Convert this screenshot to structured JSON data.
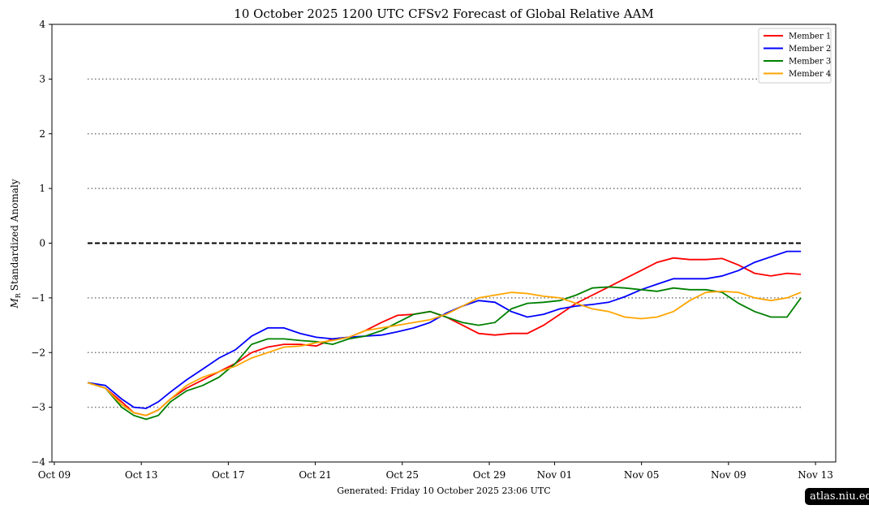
{
  "chart_data": {
    "type": "line",
    "title": "10  October  2025 1200 UTC   CFSv2 Forecast of Global Relative AAM",
    "xlabel": "",
    "ylabel_symbol": "M",
    "ylabel_subscript": "R",
    "ylabel": "Standardized Anomaly",
    "x_units": "days since Oct 09 2025 00 UTC",
    "xlim": [
      -0.11,
      35.93
    ],
    "ylim": [
      -4,
      4
    ],
    "yticks": [
      4,
      3,
      2,
      1,
      0,
      -1,
      -2,
      -3,
      -4
    ],
    "ytick_labels": [
      "4",
      "3",
      "2",
      "1",
      "0",
      "−1",
      "−2",
      "−3",
      "−4"
    ],
    "xticks": [
      0,
      4,
      8,
      12,
      16,
      20,
      23,
      27,
      31,
      35
    ],
    "xtick_labels": [
      "Oct 09",
      "Oct 13",
      "Oct 17",
      "Oct 21",
      "Oct 25",
      "Oct 29",
      "Nov 01",
      "Nov 05",
      "Nov 09",
      "Nov 13"
    ],
    "reference_lines": {
      "dotted": [
        3,
        2,
        1,
        -1,
        -2,
        -3
      ],
      "dashed": [
        0
      ]
    },
    "legend_position": "top-right",
    "x": [
      1.53,
      2.35,
      3.1,
      3.66,
      4.22,
      4.78,
      5.34,
      6.08,
      6.83,
      7.57,
      8.32,
      9.07,
      9.81,
      10.56,
      11.31,
      12.05,
      12.8,
      13.54,
      14.29,
      15.04,
      15.78,
      16.53,
      17.28,
      18.02,
      18.77,
      19.51,
      20.26,
      21.01,
      21.75,
      22.5,
      23.25,
      23.99,
      24.74,
      25.49,
      26.23,
      26.98,
      27.72,
      28.47,
      29.22,
      29.96,
      30.71,
      31.46,
      32.2,
      32.95,
      33.69,
      34.33
    ],
    "series": [
      {
        "name": "Member 1",
        "color": "#ff0000",
        "values": [
          -2.55,
          -2.65,
          -2.9,
          -3.1,
          -3.15,
          -3.05,
          -2.85,
          -2.65,
          -2.5,
          -2.35,
          -2.2,
          -2.0,
          -1.9,
          -1.85,
          -1.85,
          -1.88,
          -1.75,
          -1.72,
          -1.6,
          -1.45,
          -1.32,
          -1.3,
          -1.25,
          -1.35,
          -1.5,
          -1.65,
          -1.68,
          -1.65,
          -1.65,
          -1.5,
          -1.3,
          -1.1,
          -0.95,
          -0.8,
          -0.65,
          -0.5,
          -0.35,
          -0.27,
          -0.3,
          -0.3,
          -0.28,
          -0.4,
          -0.55,
          -0.6,
          -0.55,
          -0.57
        ]
      },
      {
        "name": "Member 2",
        "color": "#0000ff",
        "values": [
          -2.55,
          -2.6,
          -2.85,
          -3.0,
          -3.02,
          -2.9,
          -2.72,
          -2.5,
          -2.3,
          -2.1,
          -1.95,
          -1.7,
          -1.55,
          -1.55,
          -1.65,
          -1.72,
          -1.75,
          -1.72,
          -1.7,
          -1.68,
          -1.62,
          -1.55,
          -1.45,
          -1.28,
          -1.15,
          -1.05,
          -1.08,
          -1.25,
          -1.35,
          -1.3,
          -1.2,
          -1.15,
          -1.12,
          -1.08,
          -0.98,
          -0.85,
          -0.75,
          -0.65,
          -0.65,
          -0.65,
          -0.6,
          -0.5,
          -0.35,
          -0.25,
          -0.15,
          -0.15
        ]
      },
      {
        "name": "Member 3",
        "color": "#008000",
        "values": [
          -2.55,
          -2.65,
          -3.0,
          -3.15,
          -3.22,
          -3.15,
          -2.9,
          -2.7,
          -2.6,
          -2.45,
          -2.2,
          -1.85,
          -1.75,
          -1.75,
          -1.78,
          -1.8,
          -1.85,
          -1.75,
          -1.7,
          -1.6,
          -1.45,
          -1.3,
          -1.25,
          -1.35,
          -1.45,
          -1.5,
          -1.45,
          -1.2,
          -1.1,
          -1.08,
          -1.05,
          -0.95,
          -0.82,
          -0.8,
          -0.82,
          -0.85,
          -0.88,
          -0.82,
          -0.85,
          -0.85,
          -0.9,
          -1.1,
          -1.25,
          -1.35,
          -1.35,
          -1.0
        ]
      },
      {
        "name": "Member 4",
        "color": "#ffa500",
        "values": [
          -2.55,
          -2.65,
          -2.95,
          -3.1,
          -3.15,
          -3.05,
          -2.85,
          -2.6,
          -2.45,
          -2.35,
          -2.25,
          -2.1,
          -2.0,
          -1.9,
          -1.88,
          -1.82,
          -1.78,
          -1.72,
          -1.6,
          -1.55,
          -1.5,
          -1.45,
          -1.4,
          -1.3,
          -1.15,
          -1.0,
          -0.95,
          -0.9,
          -0.92,
          -0.97,
          -1.0,
          -1.1,
          -1.2,
          -1.25,
          -1.35,
          -1.38,
          -1.35,
          -1.25,
          -1.05,
          -0.9,
          -0.88,
          -0.9,
          -1.0,
          -1.05,
          -1.0,
          -0.9
        ]
      }
    ],
    "footer": "Generated: Friday  10  October  2025  23:06 UTC"
  },
  "watermark": "atlas.niu.edu"
}
